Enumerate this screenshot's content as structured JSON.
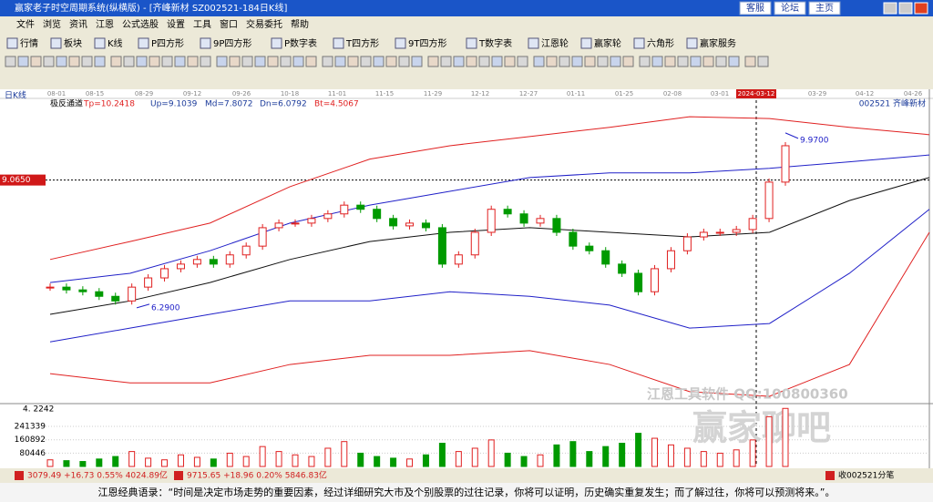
{
  "window": {
    "title": "赢家老子时空周期系统(纵横版) - [齐峰新材 SZ002521-184日K线]",
    "links": [
      "客服",
      "论坛",
      "主页"
    ]
  },
  "menu": [
    "文件",
    "浏览",
    "资讯",
    "江恩",
    "公式选股",
    "设置",
    "工具",
    "窗口",
    "交易委托",
    "帮助"
  ],
  "toolbar": [
    "行情",
    "板块",
    "K线",
    "P四方形",
    "9P四方形",
    "P数字表",
    "T四方形",
    "9T四方形",
    "T数字表",
    "江恩轮",
    "赢家轮",
    "六角形",
    "赢家服务"
  ],
  "chart_header": {
    "period": "日K线",
    "indicator": "极反通道",
    "params": [
      "Tp=10.2418",
      "Up=9.1039",
      "Md=7.8072",
      "Dn=6.0792",
      "Bt=4.5067"
    ],
    "stock": "002521 齐峰新材"
  },
  "chart_data": [
    {
      "type": "candlestick",
      "x_labels": [
        "08-01",
        "08-15",
        "08-29",
        "09-12",
        "09-26",
        "10-18",
        "11-01",
        "11-15",
        "11-29",
        "12-12",
        "12-27",
        "01-11",
        "01-25",
        "02-08",
        "03-01",
        "2024-03-12",
        "03-29",
        "04-12",
        "04-26"
      ],
      "closes": [
        6.74,
        6.68,
        6.64,
        6.54,
        6.44,
        6.74,
        6.94,
        7.14,
        7.24,
        7.34,
        7.24,
        7.44,
        7.63,
        8.03,
        8.13,
        8.13,
        8.23,
        8.33,
        8.52,
        8.43,
        8.23,
        8.07,
        8.13,
        8.03,
        7.24,
        7.44,
        7.93,
        8.43,
        8.33,
        8.13,
        8.23,
        7.93,
        7.63,
        7.53,
        7.24,
        7.04,
        6.64,
        7.14,
        7.53,
        7.83,
        7.93,
        7.93,
        7.99,
        8.23,
        9.02,
        9.81
      ],
      "bands": [
        {
          "name": "Tp",
          "color": "#e02020",
          "values": [
            7.34,
            7.73,
            8.13,
            8.92,
            9.52,
            9.81,
            10.01,
            10.21,
            10.44,
            10.4,
            10.21,
            10.05
          ]
        },
        {
          "name": "Up",
          "color": "#2020c8",
          "values": [
            6.84,
            7.04,
            7.53,
            8.13,
            8.52,
            8.82,
            9.12,
            9.22,
            9.22,
            9.32,
            9.46,
            9.61
          ]
        },
        {
          "name": "Md",
          "color": "#101010",
          "values": [
            6.15,
            6.44,
            6.84,
            7.34,
            7.73,
            7.93,
            8.03,
            7.93,
            7.83,
            7.93,
            8.62,
            9.12
          ]
        },
        {
          "name": "Dn",
          "color": "#2020c8",
          "values": [
            5.55,
            5.85,
            6.15,
            6.44,
            6.44,
            6.64,
            6.54,
            6.35,
            5.85,
            5.95,
            7.04,
            8.43
          ]
        },
        {
          "name": "Bt",
          "color": "#e02020",
          "values": [
            4.86,
            4.66,
            4.66,
            5.06,
            5.26,
            5.26,
            5.36,
            5.06,
            4.47,
            4.37,
            5.06,
            7.93
          ]
        }
      ],
      "ylim": [
        4.27,
        10.64
      ],
      "reference": {
        "value": 9.065,
        "label": "9.0650"
      },
      "max": {
        "value": 9.97,
        "label": "9.9700"
      },
      "min": {
        "value": 6.29,
        "label": "6.2900"
      },
      "up_color": "#e02020",
      "down_color": "#009a00"
    },
    {
      "type": "bar",
      "top_label": "4. 2242",
      "values": [
        40000,
        35000,
        30000,
        45000,
        60000,
        90000,
        50000,
        40000,
        70000,
        55000,
        45000,
        80000,
        60000,
        120000,
        90000,
        70000,
        60000,
        110000,
        150000,
        80000,
        60000,
        50000,
        45000,
        70000,
        140000,
        90000,
        110000,
        160000,
        80000,
        60000,
        70000,
        130000,
        150000,
        90000,
        120000,
        140000,
        200000,
        170000,
        130000,
        110000,
        90000,
        80000,
        100000,
        160000,
        300000,
        350000
      ],
      "ylim": [
        0,
        357000
      ],
      "yticks": [
        80446,
        160892,
        241339
      ]
    }
  ],
  "watermark": [
    "江恩工具软件 QQ:100800360",
    "赢家聊吧"
  ],
  "status": [
    "3079.49 +16.73 0.55% 4024.89亿",
    "9715.65 +18.96 0.20% 5846.83亿",
    "收002521分笔"
  ],
  "quote": "江恩经典语录：“时间是决定市场走势的重要因素，经过详细研究大市及个别股票的过往记录，你将可以证明，历史确实重复发生；而了解过往，你将可以预测将来。”。"
}
